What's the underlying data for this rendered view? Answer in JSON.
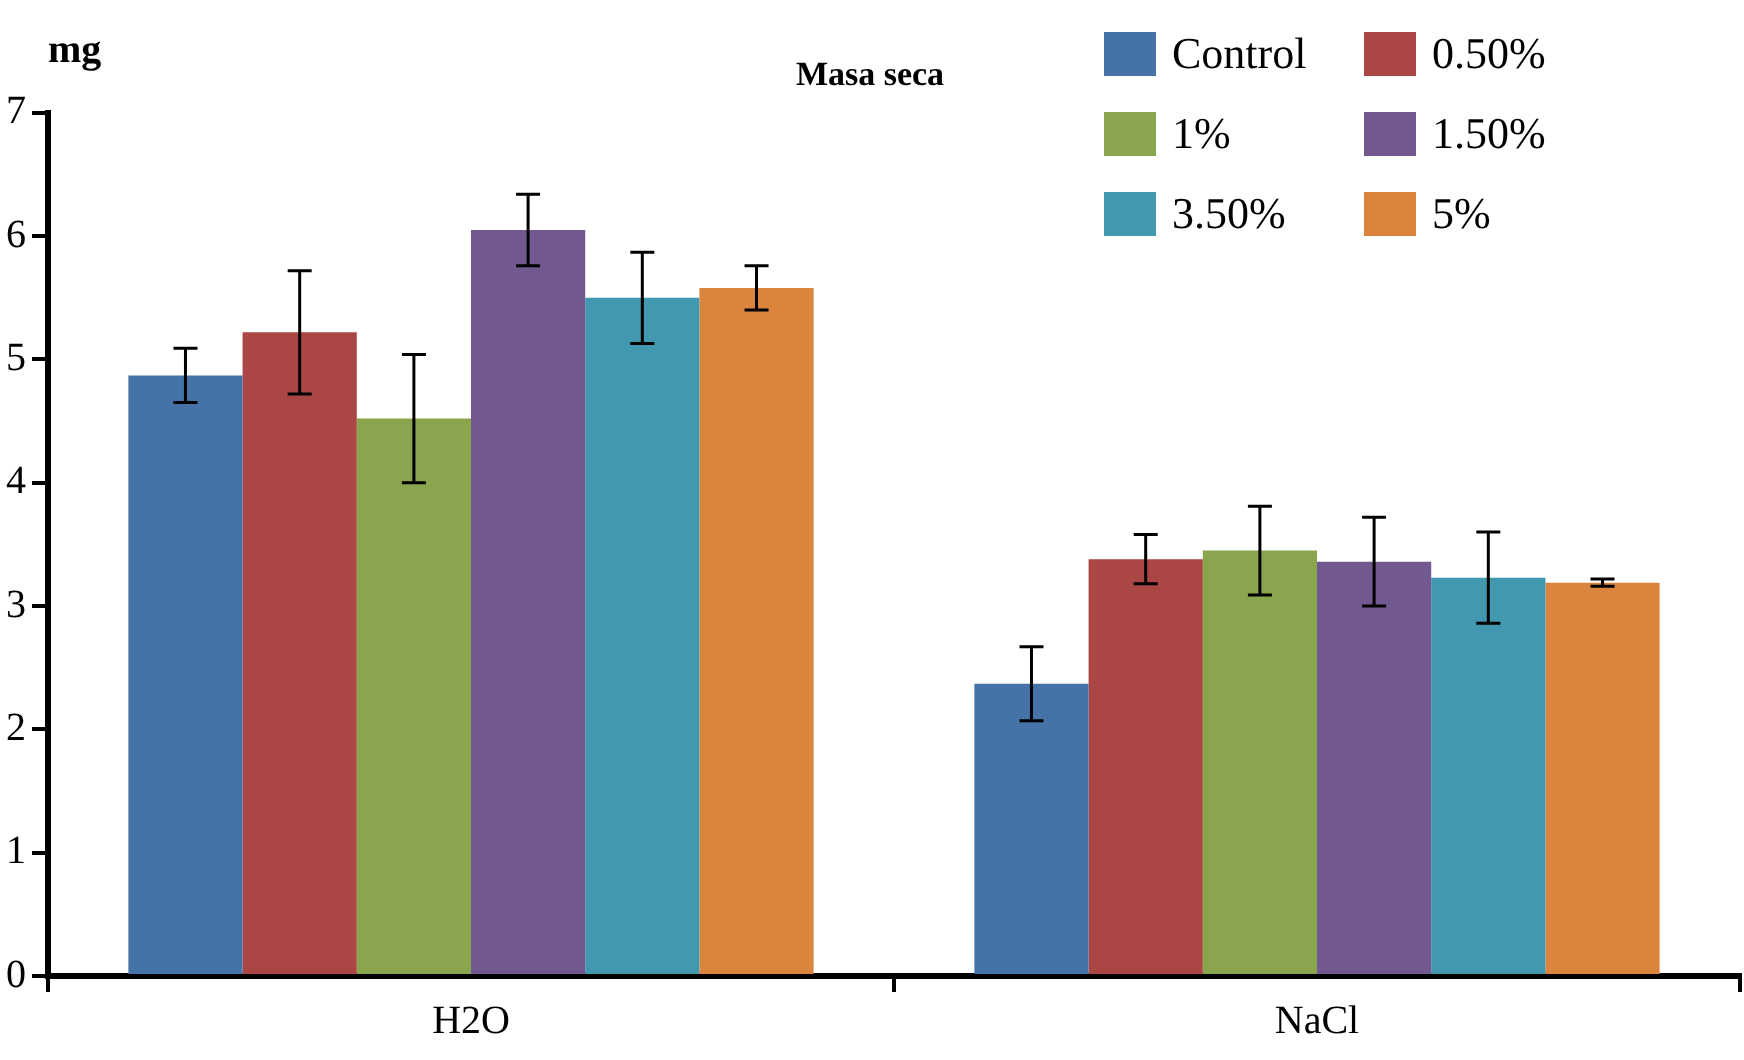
{
  "chart_data": {
    "type": "bar",
    "title": "Masa seca",
    "ylabel": "mg",
    "categories": [
      "H2O",
      "NaCl"
    ],
    "series": [
      {
        "name": "Control",
        "color": "#4572a7",
        "values": [
          4.87,
          2.37
        ],
        "errors": [
          0.22,
          0.3
        ]
      },
      {
        "name": "0.50%",
        "color": "#aa4643",
        "values": [
          5.22,
          3.38
        ],
        "errors": [
          0.5,
          0.2
        ]
      },
      {
        "name": "1%",
        "color": "#89a54e",
        "values": [
          4.52,
          3.45
        ],
        "errors": [
          0.52,
          0.36
        ]
      },
      {
        "name": "1.50%",
        "color": "#71588f",
        "values": [
          6.05,
          3.36
        ],
        "errors": [
          0.29,
          0.36
        ]
      },
      {
        "name": "3.50%",
        "color": "#4198af",
        "values": [
          5.5,
          3.23
        ],
        "errors": [
          0.37,
          0.37
        ]
      },
      {
        "name": "5%",
        "color": "#db843d",
        "values": [
          5.58,
          3.19
        ],
        "errors": [
          0.18,
          0.03
        ]
      }
    ],
    "ylim": [
      0,
      7
    ],
    "yticks": [
      0,
      1,
      2,
      3,
      4,
      5,
      6,
      7
    ],
    "grid": false,
    "legend": "top right"
  }
}
